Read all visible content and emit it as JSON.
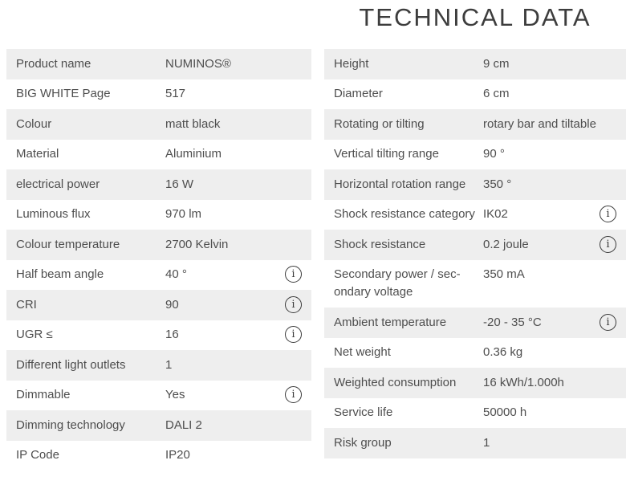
{
  "title": "TECHNICAL DATA",
  "colors": {
    "row_alt_bg": "#eeeeee",
    "text": "#4e4e4e",
    "title": "#3d3d3d",
    "icon": "#3a3a3a"
  },
  "info_icon": {
    "name": "info-icon",
    "glyph": "i"
  },
  "left_table": {
    "rows": [
      {
        "label": "Product name",
        "value": "NUMINOS®",
        "info": false
      },
      {
        "label": "BIG WHITE Page",
        "value": "517",
        "info": false
      },
      {
        "label": "Colour",
        "value": "matt black",
        "info": false
      },
      {
        "label": "Material",
        "value": "Aluminium",
        "info": false
      },
      {
        "label": "electrical power",
        "value": "16 W",
        "info": false
      },
      {
        "label": "Luminous flux",
        "value": "970 lm",
        "info": false
      },
      {
        "label": "Colour temperature",
        "value": "2700 Kelvin",
        "info": false
      },
      {
        "label": "Half beam angle",
        "value": "40 °",
        "info": true
      },
      {
        "label": "CRI",
        "value": "90",
        "info": true
      },
      {
        "label": "UGR ≤",
        "value": "16",
        "info": true
      },
      {
        "label": "Different light outlets",
        "value": "1",
        "info": false
      },
      {
        "label": "Dimmable",
        "value": "Yes",
        "info": true
      },
      {
        "label": "Dimming technology",
        "value": "DALI 2",
        "info": false
      },
      {
        "label": "IP Code",
        "value": "IP20",
        "info": false
      }
    ]
  },
  "right_table": {
    "rows": [
      {
        "label": "Height",
        "value": "9 cm",
        "info": false
      },
      {
        "label": "Diameter",
        "value": "6 cm",
        "info": false
      },
      {
        "label": "Rotating or tilting",
        "value": "rotary bar and tiltable",
        "info": false
      },
      {
        "label": "Vertical tilting range",
        "value": "90 °",
        "info": false
      },
      {
        "label": "Horizontal rotation range",
        "value": "350 °",
        "info": false
      },
      {
        "label": "Shock resistance category",
        "value": "IK02",
        "info": true
      },
      {
        "label": "Shock resistance",
        "value": "0.2 joule",
        "info": true
      },
      {
        "label": "Secondary power / sec­ondary voltage",
        "value": "350 mA",
        "info": false
      },
      {
        "label": "Ambient temperature",
        "value": "-20 - 35 °C",
        "info": true
      },
      {
        "label": "Net weight",
        "value": "0.36 kg",
        "info": false
      },
      {
        "label": "Weighted consumption",
        "value": "16 kWh/1.000h",
        "info": false
      },
      {
        "label": "Service life",
        "value": "50000 h",
        "info": false
      },
      {
        "label": "Risk group",
        "value": "1",
        "info": false
      }
    ]
  }
}
